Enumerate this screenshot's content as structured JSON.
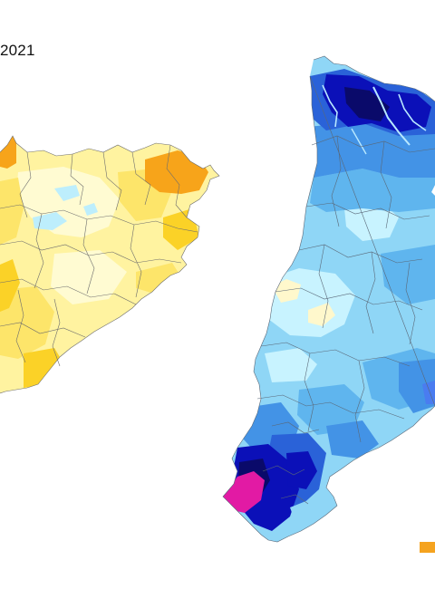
{
  "title_fragment": "2021",
  "map_left": {
    "palette": {
      "base": "#fff3a0",
      "light": "#fffbd2",
      "mid": "#fde56a",
      "warm": "#fbd227",
      "orange": "#f7a41a",
      "cold": "#bdeefc"
    }
  },
  "map_right": {
    "palette": {
      "base": "#8fd6f6",
      "pale": "#c8f3ff",
      "cream": "#fff8cc",
      "sky": "#5fb5ee",
      "mid": "#4393e6",
      "deep": "#2a62d8",
      "navy": "#0b10b8",
      "dark": "#0a0a6a",
      "magenta": "#e21aa4",
      "stream": "#b8e8ff"
    }
  },
  "legend": {
    "visible_swatch_color": "#f5a31f"
  }
}
